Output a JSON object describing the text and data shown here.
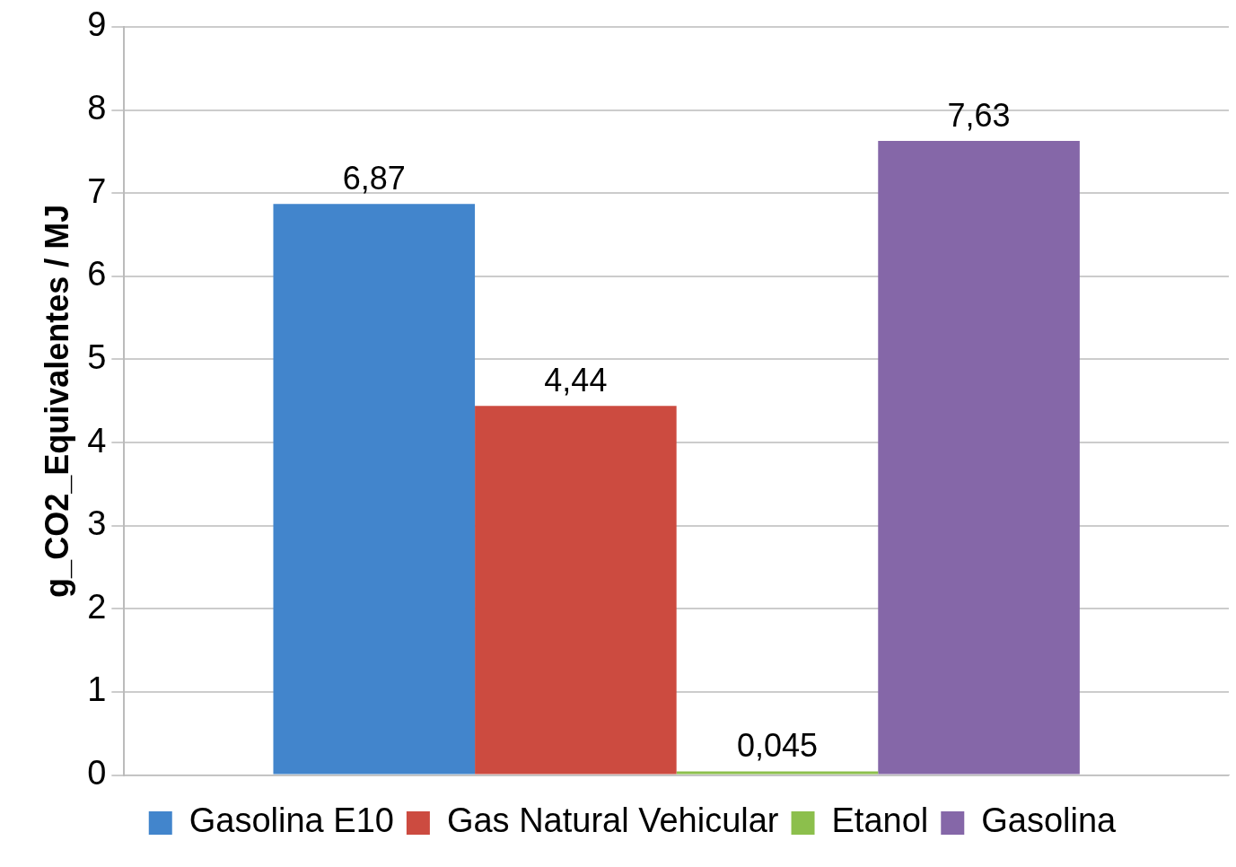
{
  "chart_data": {
    "type": "bar",
    "ylabel": "g_CO2_Equivalentes / MJ",
    "categories": [
      null
    ],
    "series": [
      {
        "name": "Gasolina E10",
        "color": "#4285cc",
        "values": [
          6.87
        ],
        "value_labels": [
          "6,87"
        ]
      },
      {
        "name": "Gas Natural Vehicular",
        "color": "#cc4b40",
        "values": [
          4.44
        ],
        "value_labels": [
          "4,44"
        ]
      },
      {
        "name": "Etanol",
        "color": "#8cbf4c",
        "values": [
          0.045
        ],
        "value_labels": [
          "0,045"
        ]
      },
      {
        "name": "Gasolina",
        "color": "#8567a8",
        "values": [
          7.63
        ],
        "value_labels": [
          "7,63"
        ]
      }
    ],
    "ylim": [
      0,
      9
    ],
    "yticks": [
      0,
      1,
      2,
      3,
      4,
      5,
      6,
      7,
      8,
      9
    ],
    "grid": "y",
    "legend": "bottom"
  }
}
